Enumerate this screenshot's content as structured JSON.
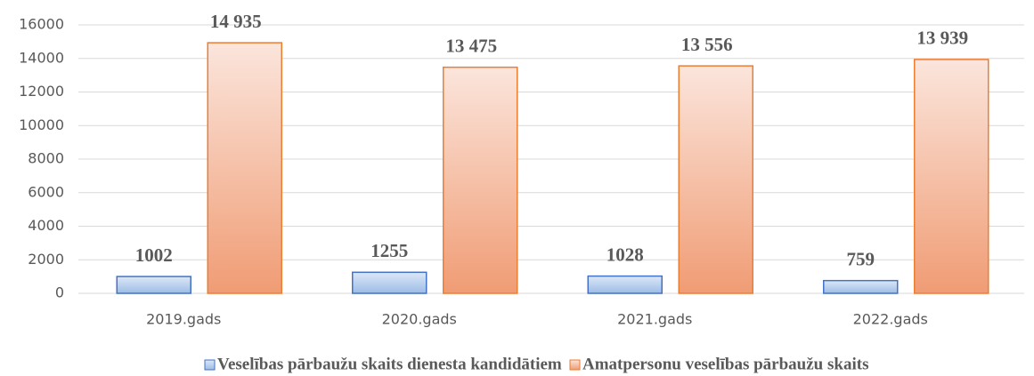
{
  "chart_data": {
    "type": "bar",
    "categories": [
      "2019.gads",
      "2020.gads",
      "2021.gads",
      "2022.gads"
    ],
    "series": [
      {
        "name": "Veselības pārbaužu skaits dienesta kandidātiem",
        "color": "#4472c4",
        "values": [
          1002,
          1255,
          1028,
          759
        ]
      },
      {
        "name": "Amatpersonu veselības pārbaužu skaits",
        "color": "#ed7d31",
        "values": [
          14935,
          13475,
          13556,
          13939
        ],
        "value_labels": [
          "14 935",
          "13 475",
          "13 556",
          "13 939"
        ]
      }
    ],
    "ylim": [
      0,
      16000
    ],
    "yticks": [
      0,
      2000,
      4000,
      6000,
      8000,
      10000,
      12000,
      14000,
      16000
    ],
    "grid": true,
    "legend": "bottom"
  }
}
